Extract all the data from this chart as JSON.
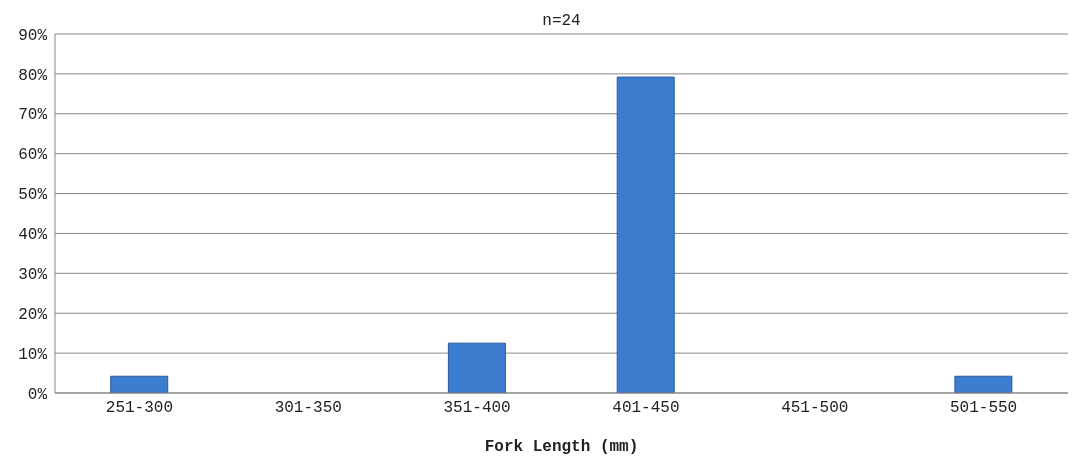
{
  "chart_data": {
    "type": "bar",
    "title": "n=24",
    "xlabel": "Fork Length (mm)",
    "categories": [
      "251-300",
      "301-350",
      "351-400",
      "401-450",
      "451-500",
      "501-550"
    ],
    "values": [
      4.2,
      0,
      12.5,
      79.2,
      0,
      4.2
    ],
    "color": "#3c7dd0",
    "ylim": [
      0,
      90
    ],
    "yticks": [
      {
        "value": 0,
        "label": "0%"
      },
      {
        "value": 10,
        "label": "10%"
      },
      {
        "value": 20,
        "label": "20%"
      },
      {
        "value": 30,
        "label": "30%"
      },
      {
        "value": 40,
        "label": "40%"
      },
      {
        "value": 50,
        "label": "50%"
      },
      {
        "value": 60,
        "label": "60%"
      },
      {
        "value": 70,
        "label": "70%"
      },
      {
        "value": 80,
        "label": "80%"
      },
      {
        "value": 90,
        "label": "90%"
      }
    ],
    "grid": "y",
    "legend": false
  }
}
